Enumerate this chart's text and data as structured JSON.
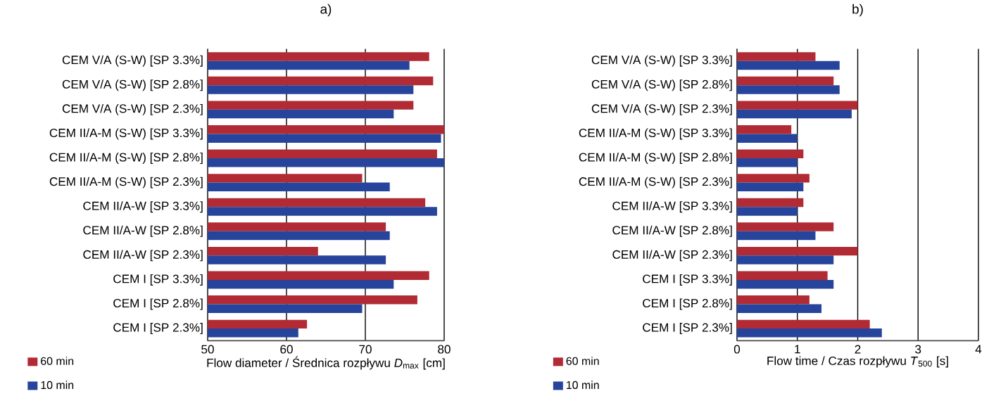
{
  "chart_data": [
    {
      "type": "bar",
      "orientation": "horizontal",
      "title": "a)",
      "xlabel": "Flow diameter / Średnica rozpływu *D*$_{max}$ [cm]",
      "categories": [
        "CEM V/A (S-W) [SP 3.3%]",
        "CEM V/A (S-W) [SP 2.8%]",
        "CEM V/A (S-W) [SP 2.3%]",
        "CEM II/A-M (S-W) [SP 3.3%]",
        "CEM II/A-M (S-W) [SP 2.8%]",
        "CEM II/A-M (S-W) [SP 2.3%]",
        "CEM II/A-W [SP 3.3%]",
        "CEM II/A-W [SP 2.8%]",
        "CEM II/A-W [SP 2.3%]",
        "CEM I [SP 3.3%]",
        "CEM I [SP 2.8%]",
        "CEM I [SP 2.3%]"
      ],
      "series": [
        {
          "name": "60 min",
          "color": "#b22a33",
          "values": [
            78.1,
            78.6,
            76.1,
            80,
            79.1,
            69.6,
            77.6,
            72.6,
            64.0,
            78.1,
            76.6,
            62.6
          ]
        },
        {
          "name": "10 min",
          "color": "#27449c",
          "values": [
            75.6,
            76.1,
            73.6,
            79.6,
            80,
            73.1,
            79.1,
            73.1,
            72.6,
            73.6,
            69.6,
            61.5
          ]
        }
      ],
      "xlim": [
        50,
        80
      ],
      "xticks": [
        50,
        60,
        70,
        80
      ],
      "grid": "x",
      "legend": "bottom left"
    },
    {
      "type": "bar",
      "orientation": "horizontal",
      "title": "b)",
      "xlabel": "Flow time / Czas rozpływu *T*$_{500}$ [s]",
      "categories": [
        "CEM V/A (S-W) [SP 3.3%]",
        "CEM V/A (S-W) [SP 2.8%]",
        "CEM V/A (S-W) [SP 2.3%]",
        "CEM II/A-M (S-W) [SP 3.3%]",
        "CEM II/A-M (S-W) [SP 2.8%]",
        "CEM II/A-M (S-W) [SP 2.3%]",
        "CEM II/A-W [SP 3.3%]",
        "CEM II/A-W [SP 2.8%]",
        "CEM II/A-W [SP 2.3%]",
        "CEM I [SP 3.3%]",
        "CEM I [SP 2.8%]",
        "CEM I [SP 2.3%]"
      ],
      "series": [
        {
          "name": "60 min",
          "color": "#b22a33",
          "values": [
            1.3,
            1.6,
            2.0,
            0.9,
            1.1,
            1.2,
            1.1,
            1.6,
            2.0,
            1.5,
            1.2,
            2.2
          ]
        },
        {
          "name": "10 min",
          "color": "#27449c",
          "values": [
            1.7,
            1.7,
            1.9,
            1.0,
            1.0,
            1.1,
            1.0,
            1.3,
            1.6,
            1.6,
            1.4,
            2.4
          ]
        }
      ],
      "xlim": [
        0,
        4
      ],
      "xticks": [
        0,
        1,
        2,
        3,
        4
      ],
      "grid": "x",
      "legend": "bottom left"
    }
  ]
}
